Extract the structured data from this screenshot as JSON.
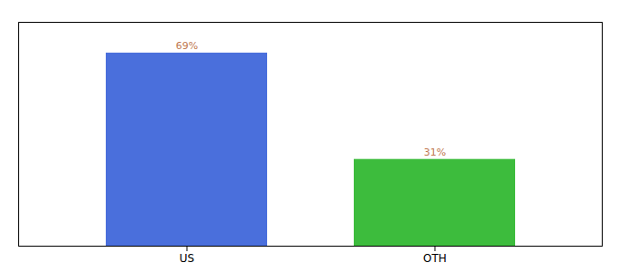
{
  "chart_data": {
    "type": "bar",
    "categories": [
      "US",
      "OTH"
    ],
    "values": [
      69,
      31
    ],
    "value_labels": [
      "69%",
      "31%"
    ],
    "colors": [
      "#4a6fdc",
      "#3dbc3d"
    ],
    "ylim": [
      0,
      80
    ],
    "data_labels": true,
    "tick_labels": "x"
  }
}
